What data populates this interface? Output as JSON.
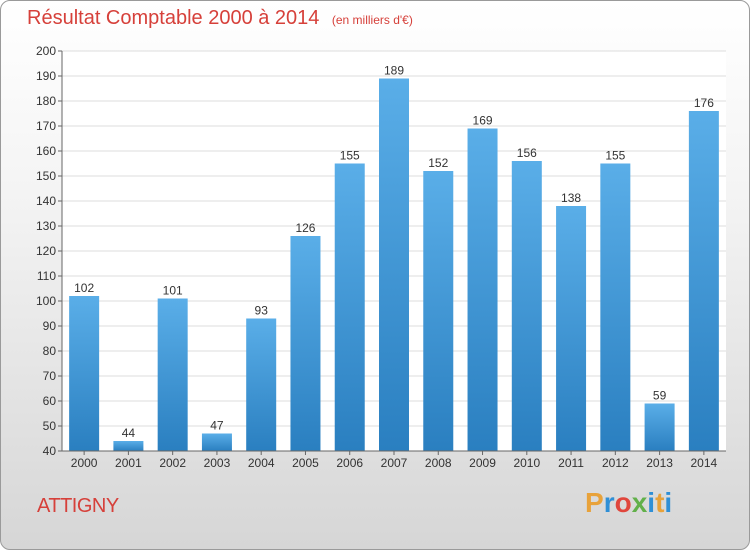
{
  "header": {
    "title": "Résultat Comptable 2000 à 2014",
    "unit": "(en milliers d'€)"
  },
  "footer": {
    "commune": "ATTIGNY",
    "logo_letters": [
      "P",
      "r",
      "o",
      "x",
      "i",
      "t",
      "i"
    ]
  },
  "colors": {
    "title": "#d6403a",
    "bar_top": "#5aaee8",
    "bar_bottom": "#2a7fc0",
    "grid": "#dddddd",
    "logo": [
      "#e8a23a",
      "#2f8fd6",
      "#e0463c",
      "#62b04a",
      "#2f8fd6",
      "#e8a23a",
      "#2f8fd6"
    ]
  },
  "chart_data": {
    "type": "bar",
    "title": "Résultat Comptable 2000 à 2014",
    "xlabel": "",
    "ylabel": "",
    "categories": [
      "2000",
      "2001",
      "2002",
      "2003",
      "2004",
      "2005",
      "2006",
      "2007",
      "2008",
      "2009",
      "2010",
      "2011",
      "2012",
      "2013",
      "2014"
    ],
    "values": [
      102,
      44,
      101,
      47,
      93,
      126,
      155,
      189,
      152,
      169,
      156,
      138,
      155,
      59,
      176
    ],
    "ylim": [
      40,
      200
    ],
    "yticks": [
      "40",
      "50",
      "60",
      "70",
      "80",
      "90",
      "100",
      "110",
      "120",
      "130",
      "140",
      "150",
      "160",
      "170",
      "180",
      "190",
      "200"
    ],
    "grid": true,
    "legend": "none"
  }
}
